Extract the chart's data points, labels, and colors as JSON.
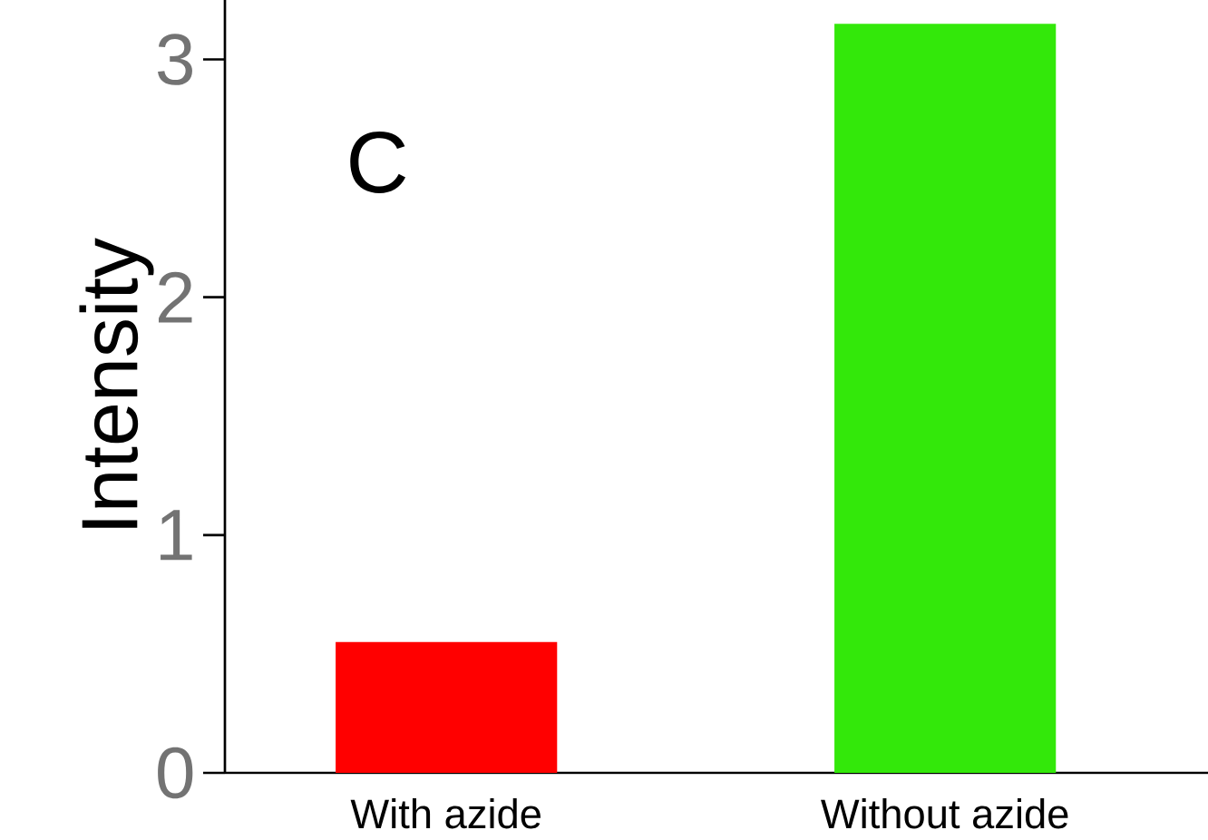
{
  "chart_data": {
    "type": "bar",
    "ylabel": "Intensity",
    "categories": [
      "With azide",
      "Without azide"
    ],
    "values": [
      0.55,
      3.15
    ],
    "colors": [
      "#ff0000",
      "#33e80a"
    ],
    "ylim": [
      0,
      3.25
    ],
    "yticks": [
      0,
      1,
      2,
      3
    ],
    "annotations": [
      "C"
    ]
  }
}
